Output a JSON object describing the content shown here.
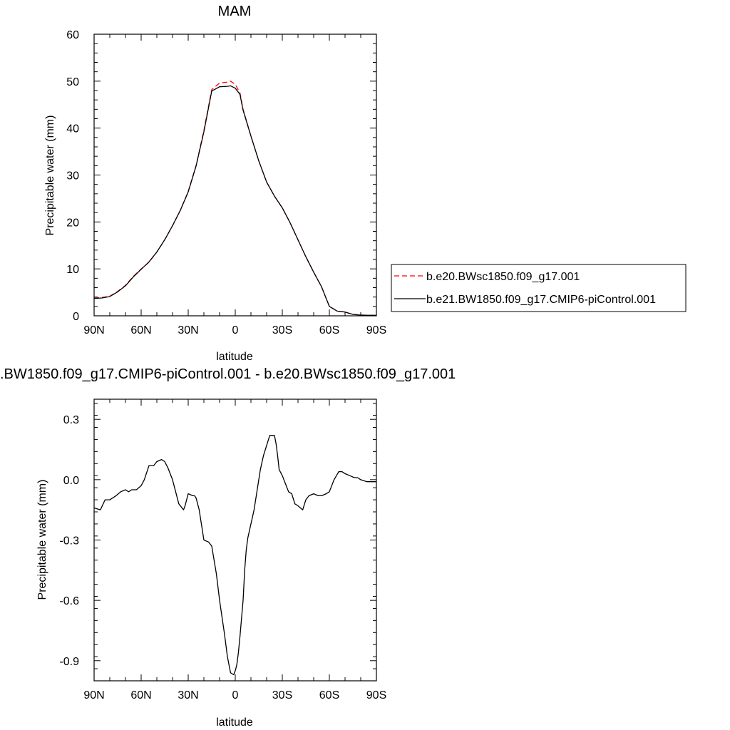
{
  "chart_data": [
    {
      "type": "line",
      "title": "MAM",
      "xlabel": "latitude",
      "ylabel": "Precipitable water (mm)",
      "xlim": [
        90,
        -90
      ],
      "ylim": [
        0,
        60
      ],
      "xticks": [
        90,
        60,
        30,
        0,
        -30,
        -60,
        -90
      ],
      "xtick_labels": [
        "90N",
        "60N",
        "30N",
        "0",
        "30S",
        "60S",
        "90S"
      ],
      "yticks": [
        0,
        10,
        20,
        30,
        40,
        50,
        60
      ],
      "ytick_labels": [
        "0",
        "10",
        "20",
        "30",
        "40",
        "50",
        "60"
      ],
      "legend_position": "right",
      "series": [
        {
          "name": "b.e20.BWsc1850.f09_g17.001",
          "color": "#ff0000",
          "style": "dashed",
          "x": [
            90,
            85,
            80,
            75,
            70,
            65,
            60,
            55,
            50,
            45,
            40,
            35,
            30,
            25,
            20,
            15,
            10,
            5,
            3,
            0,
            -3,
            -5,
            -10,
            -15,
            -20,
            -25,
            -30,
            -35,
            -40,
            -45,
            -50,
            -55,
            -60,
            -65,
            -70,
            -75,
            -80,
            -85,
            -90
          ],
          "y": [
            3.8,
            3.9,
            4.2,
            5.2,
            6.5,
            8.4,
            10.0,
            11.4,
            13.6,
            16.2,
            19.2,
            22.5,
            26.5,
            32.0,
            39.5,
            48.2,
            49.6,
            49.8,
            50.0,
            49.3,
            47.5,
            44.0,
            38.3,
            33.0,
            28.5,
            25.5,
            23.0,
            19.8,
            16.2,
            12.6,
            9.3,
            6.2,
            2.0,
            1.0,
            0.8,
            0.3,
            0.15,
            0.1,
            0.1
          ]
        },
        {
          "name": "b.e21.BW1850.f09_g17.CMIP6-piControl.001",
          "color": "#000000",
          "style": "solid",
          "x": [
            90,
            85,
            80,
            75,
            70,
            65,
            60,
            55,
            50,
            45,
            40,
            35,
            30,
            25,
            20,
            15,
            10,
            5,
            3,
            0,
            -3,
            -5,
            -10,
            -15,
            -20,
            -25,
            -30,
            -35,
            -40,
            -45,
            -50,
            -55,
            -60,
            -65,
            -70,
            -75,
            -80,
            -85,
            -90
          ],
          "y": [
            3.7,
            3.8,
            4.1,
            5.1,
            6.4,
            8.3,
            9.9,
            11.5,
            13.6,
            16.2,
            19.2,
            22.5,
            26.4,
            31.9,
            39.2,
            47.9,
            48.8,
            48.9,
            49.0,
            48.5,
            47.2,
            43.8,
            38.3,
            33.0,
            28.5,
            25.5,
            23.0,
            19.8,
            16.2,
            12.6,
            9.3,
            6.2,
            2.0,
            1.0,
            0.8,
            0.3,
            0.15,
            0.1,
            0.1
          ]
        }
      ]
    },
    {
      "type": "line",
      "title": ".BW1850.f09_g17.CMIP6-piControl.001 - b.e20.BWsc1850.f09_g17.001",
      "xlabel": "latitude",
      "ylabel": "Precipitable water (mm)",
      "xlim": [
        90,
        -90
      ],
      "ylim": [
        -1.0,
        0.4
      ],
      "xticks": [
        90,
        60,
        30,
        0,
        -30,
        -60,
        -90
      ],
      "xtick_labels": [
        "90N",
        "60N",
        "30N",
        "0",
        "30S",
        "60S",
        "90S"
      ],
      "yticks": [
        -0.9,
        -0.6,
        -0.3,
        0.0,
        0.3
      ],
      "ytick_labels": [
        "-0.9",
        "-0.6",
        "-0.3",
        "0.0",
        "0.3"
      ],
      "series": [
        {
          "color": "#000000",
          "style": "solid",
          "x": [
            90,
            86,
            83,
            80,
            76,
            73,
            70,
            68,
            66,
            63,
            60,
            58,
            55,
            52,
            50,
            47,
            45,
            43,
            40,
            38,
            36,
            33,
            32,
            30,
            27,
            26,
            25,
            23,
            20,
            17,
            15,
            12,
            10,
            7,
            5,
            3,
            1,
            0,
            -1,
            -2,
            -3,
            -5,
            -6,
            -7,
            -8,
            -10,
            -12,
            -14,
            -16,
            -18,
            -20,
            -22,
            -25,
            -26,
            -27,
            -28,
            -30,
            -32,
            -34,
            -36,
            -38,
            -40,
            -43,
            -45,
            -47,
            -50,
            -53,
            -55,
            -58,
            -60,
            -63,
            -66,
            -68,
            -70,
            -73,
            -76,
            -78,
            -80,
            -84,
            -86,
            -88,
            -90
          ],
          "y": [
            -0.14,
            -0.15,
            -0.1,
            -0.1,
            -0.08,
            -0.06,
            -0.05,
            -0.06,
            -0.05,
            -0.05,
            -0.03,
            0.0,
            0.07,
            0.07,
            0.09,
            0.1,
            0.09,
            0.06,
            0.0,
            -0.06,
            -0.12,
            -0.15,
            -0.13,
            -0.07,
            -0.08,
            -0.08,
            -0.09,
            -0.15,
            -0.3,
            -0.31,
            -0.33,
            -0.47,
            -0.6,
            -0.76,
            -0.88,
            -0.96,
            -0.97,
            -0.95,
            -0.92,
            -0.86,
            -0.78,
            -0.6,
            -0.45,
            -0.35,
            -0.29,
            -0.22,
            -0.15,
            -0.05,
            0.05,
            0.12,
            0.17,
            0.22,
            0.22,
            0.18,
            0.12,
            0.05,
            0.02,
            -0.02,
            -0.06,
            -0.07,
            -0.12,
            -0.13,
            -0.15,
            -0.1,
            -0.08,
            -0.07,
            -0.08,
            -0.08,
            -0.07,
            -0.06,
            0.0,
            0.04,
            0.04,
            0.03,
            0.02,
            0.01,
            0.01,
            0.0,
            -0.01,
            -0.01,
            -0.01,
            -0.01
          ]
        }
      ]
    }
  ]
}
